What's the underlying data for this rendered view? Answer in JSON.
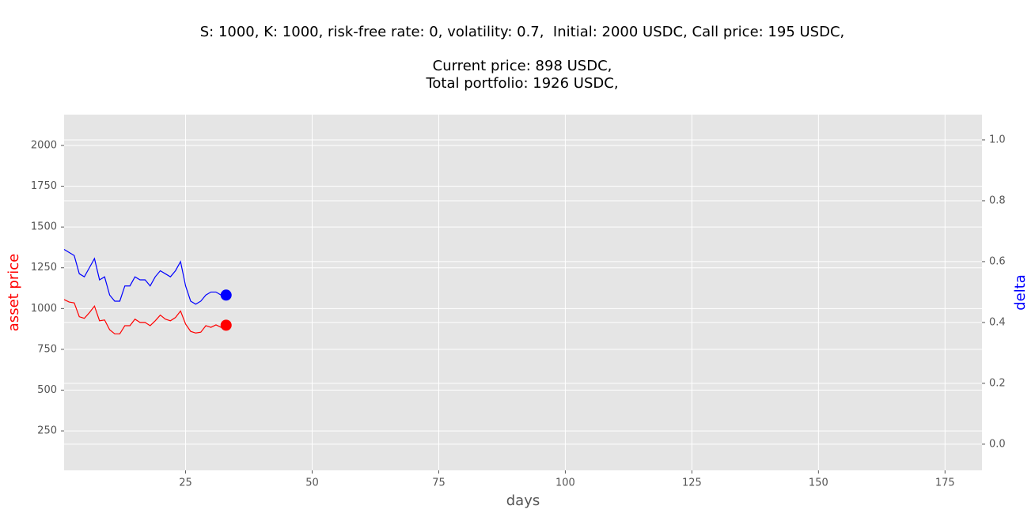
{
  "chart_data": {
    "type": "line",
    "title_lines": [
      "S: 1000, K: 1000, risk-free rate: 0, volatility: 0.7,  Initial: 2000 USDC, Call price: 195 USDC,",
      "Current price: 898 USDC,",
      "Total portfolio: 1926 USDC,"
    ],
    "xlabel": "days",
    "ylabel": "asset price",
    "y2label": "delta",
    "x": [
      1,
      2,
      3,
      4,
      5,
      6,
      7,
      8,
      9,
      10,
      11,
      12,
      13,
      14,
      15,
      16,
      17,
      18,
      19,
      20,
      21,
      22,
      23,
      24,
      25,
      26,
      27,
      28,
      29,
      30,
      31,
      32,
      33
    ],
    "series": [
      {
        "color": "#ff0000",
        "axis": "y",
        "values": [
          1055,
          1040,
          1035,
          950,
          940,
          975,
          1015,
          925,
          930,
          870,
          845,
          845,
          895,
          895,
          935,
          915,
          915,
          895,
          925,
          960,
          935,
          925,
          945,
          985,
          905,
          860,
          850,
          855,
          895,
          885,
          900,
          885,
          898
        ]
      },
      {
        "color": "#0000ff",
        "axis": "y2",
        "values": [
          0.64,
          0.63,
          0.62,
          0.56,
          0.55,
          0.58,
          0.61,
          0.54,
          0.55,
          0.49,
          0.47,
          0.47,
          0.52,
          0.52,
          0.55,
          0.54,
          0.54,
          0.52,
          0.55,
          0.57,
          0.56,
          0.55,
          0.57,
          0.6,
          0.52,
          0.47,
          0.46,
          0.47,
          0.49,
          0.5,
          0.5,
          0.49,
          0.49
        ]
      }
    ],
    "xlim": [
      1,
      182.3
    ],
    "xticks": [
      25,
      50,
      75,
      100,
      125,
      150,
      175
    ],
    "ylim": [
      8,
      2189
    ],
    "yticks": [
      250,
      500,
      750,
      1000,
      1250,
      1500,
      1750,
      2000
    ],
    "y2lim": [
      -0.086,
      1.083
    ],
    "y2ticks": [
      {
        "value": 0,
        "label": "0.0"
      },
      0.2,
      0.4,
      0.6,
      0.8,
      {
        "value": 1,
        "label": "1.0"
      }
    ],
    "grid": true,
    "background": "#e5e5e5"
  }
}
